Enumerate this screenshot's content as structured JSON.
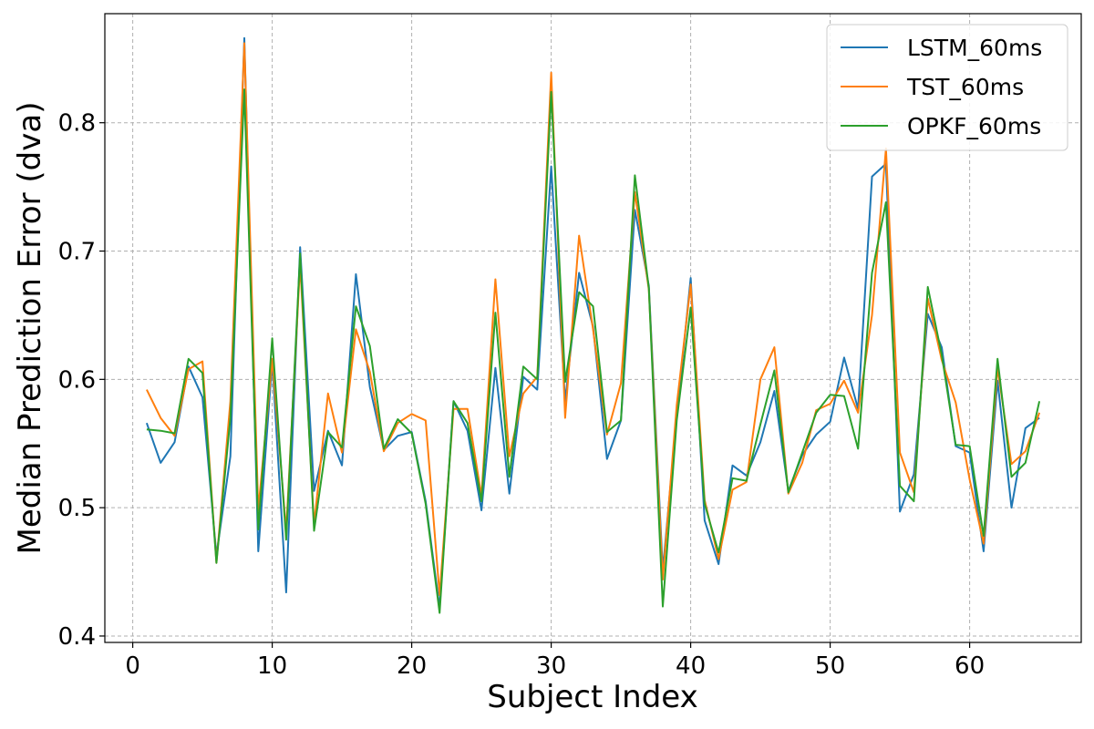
{
  "chart_data": {
    "type": "line",
    "title": "",
    "xlabel": "Subject Index",
    "ylabel": "Median Prediction Error (dva)",
    "xlim": [
      -2,
      68
    ],
    "ylim": [
      0.395,
      0.885
    ],
    "xticks": [
      0,
      10,
      20,
      30,
      40,
      50,
      60
    ],
    "yticks": [
      0.4,
      0.5,
      0.6,
      0.7,
      0.8
    ],
    "grid": true,
    "legend_position": "top-right",
    "x": [
      1,
      2,
      3,
      4,
      5,
      6,
      7,
      8,
      9,
      10,
      11,
      12,
      13,
      14,
      15,
      16,
      17,
      18,
      19,
      20,
      21,
      22,
      23,
      24,
      25,
      26,
      27,
      28,
      29,
      30,
      31,
      32,
      33,
      34,
      35,
      36,
      37,
      38,
      39,
      40,
      41,
      42,
      43,
      44,
      45,
      46,
      47,
      48,
      49,
      50,
      51,
      52,
      53,
      54,
      55,
      56,
      57,
      58,
      59,
      60,
      61,
      62,
      63,
      64,
      65
    ],
    "series": [
      {
        "name": "LSTM_60ms",
        "color": "#1f77b4",
        "values": [
          0.566,
          0.535,
          0.551,
          0.61,
          0.586,
          0.463,
          0.54,
          0.866,
          0.466,
          0.614,
          0.434,
          0.703,
          0.513,
          0.56,
          0.533,
          0.682,
          0.594,
          0.545,
          0.556,
          0.559,
          0.505,
          0.422,
          0.583,
          0.56,
          0.498,
          0.609,
          0.511,
          0.602,
          0.592,
          0.766,
          0.583,
          0.683,
          0.641,
          0.538,
          0.568,
          0.732,
          0.673,
          0.451,
          0.571,
          0.679,
          0.49,
          0.456,
          0.533,
          0.525,
          0.551,
          0.591,
          0.513,
          0.541,
          0.557,
          0.567,
          0.617,
          0.577,
          0.758,
          0.768,
          0.497,
          0.526,
          0.651,
          0.625,
          0.548,
          0.543,
          0.466,
          0.599,
          0.5,
          0.562,
          0.57
        ]
      },
      {
        "name": "TST_60ms",
        "color": "#ff7f0e",
        "values": [
          0.592,
          0.57,
          0.556,
          0.608,
          0.614,
          0.457,
          0.583,
          0.862,
          0.498,
          0.616,
          0.482,
          0.69,
          0.487,
          0.589,
          0.543,
          0.639,
          0.606,
          0.544,
          0.566,
          0.573,
          0.568,
          0.432,
          0.577,
          0.577,
          0.509,
          0.678,
          0.54,
          0.589,
          0.602,
          0.839,
          0.57,
          0.712,
          0.639,
          0.557,
          0.597,
          0.746,
          0.67,
          0.444,
          0.58,
          0.674,
          0.506,
          0.46,
          0.514,
          0.52,
          0.6,
          0.625,
          0.511,
          0.535,
          0.576,
          0.581,
          0.599,
          0.574,
          0.65,
          0.78,
          0.543,
          0.512,
          0.663,
          0.615,
          0.582,
          0.522,
          0.472,
          0.609,
          0.534,
          0.544,
          0.574
        ]
      },
      {
        "name": "OPKF_60ms",
        "color": "#2ca02c",
        "values": [
          0.561,
          0.56,
          0.558,
          0.616,
          0.605,
          0.457,
          0.57,
          0.826,
          0.483,
          0.632,
          0.475,
          0.698,
          0.482,
          0.559,
          0.547,
          0.657,
          0.626,
          0.546,
          0.569,
          0.558,
          0.503,
          0.418,
          0.583,
          0.566,
          0.505,
          0.652,
          0.524,
          0.61,
          0.6,
          0.824,
          0.598,
          0.668,
          0.657,
          0.559,
          0.568,
          0.759,
          0.671,
          0.423,
          0.568,
          0.656,
          0.503,
          0.465,
          0.523,
          0.521,
          0.565,
          0.607,
          0.512,
          0.543,
          0.574,
          0.588,
          0.587,
          0.546,
          0.683,
          0.738,
          0.517,
          0.505,
          0.672,
          0.619,
          0.549,
          0.548,
          0.478,
          0.616,
          0.524,
          0.535,
          0.583
        ]
      }
    ]
  }
}
